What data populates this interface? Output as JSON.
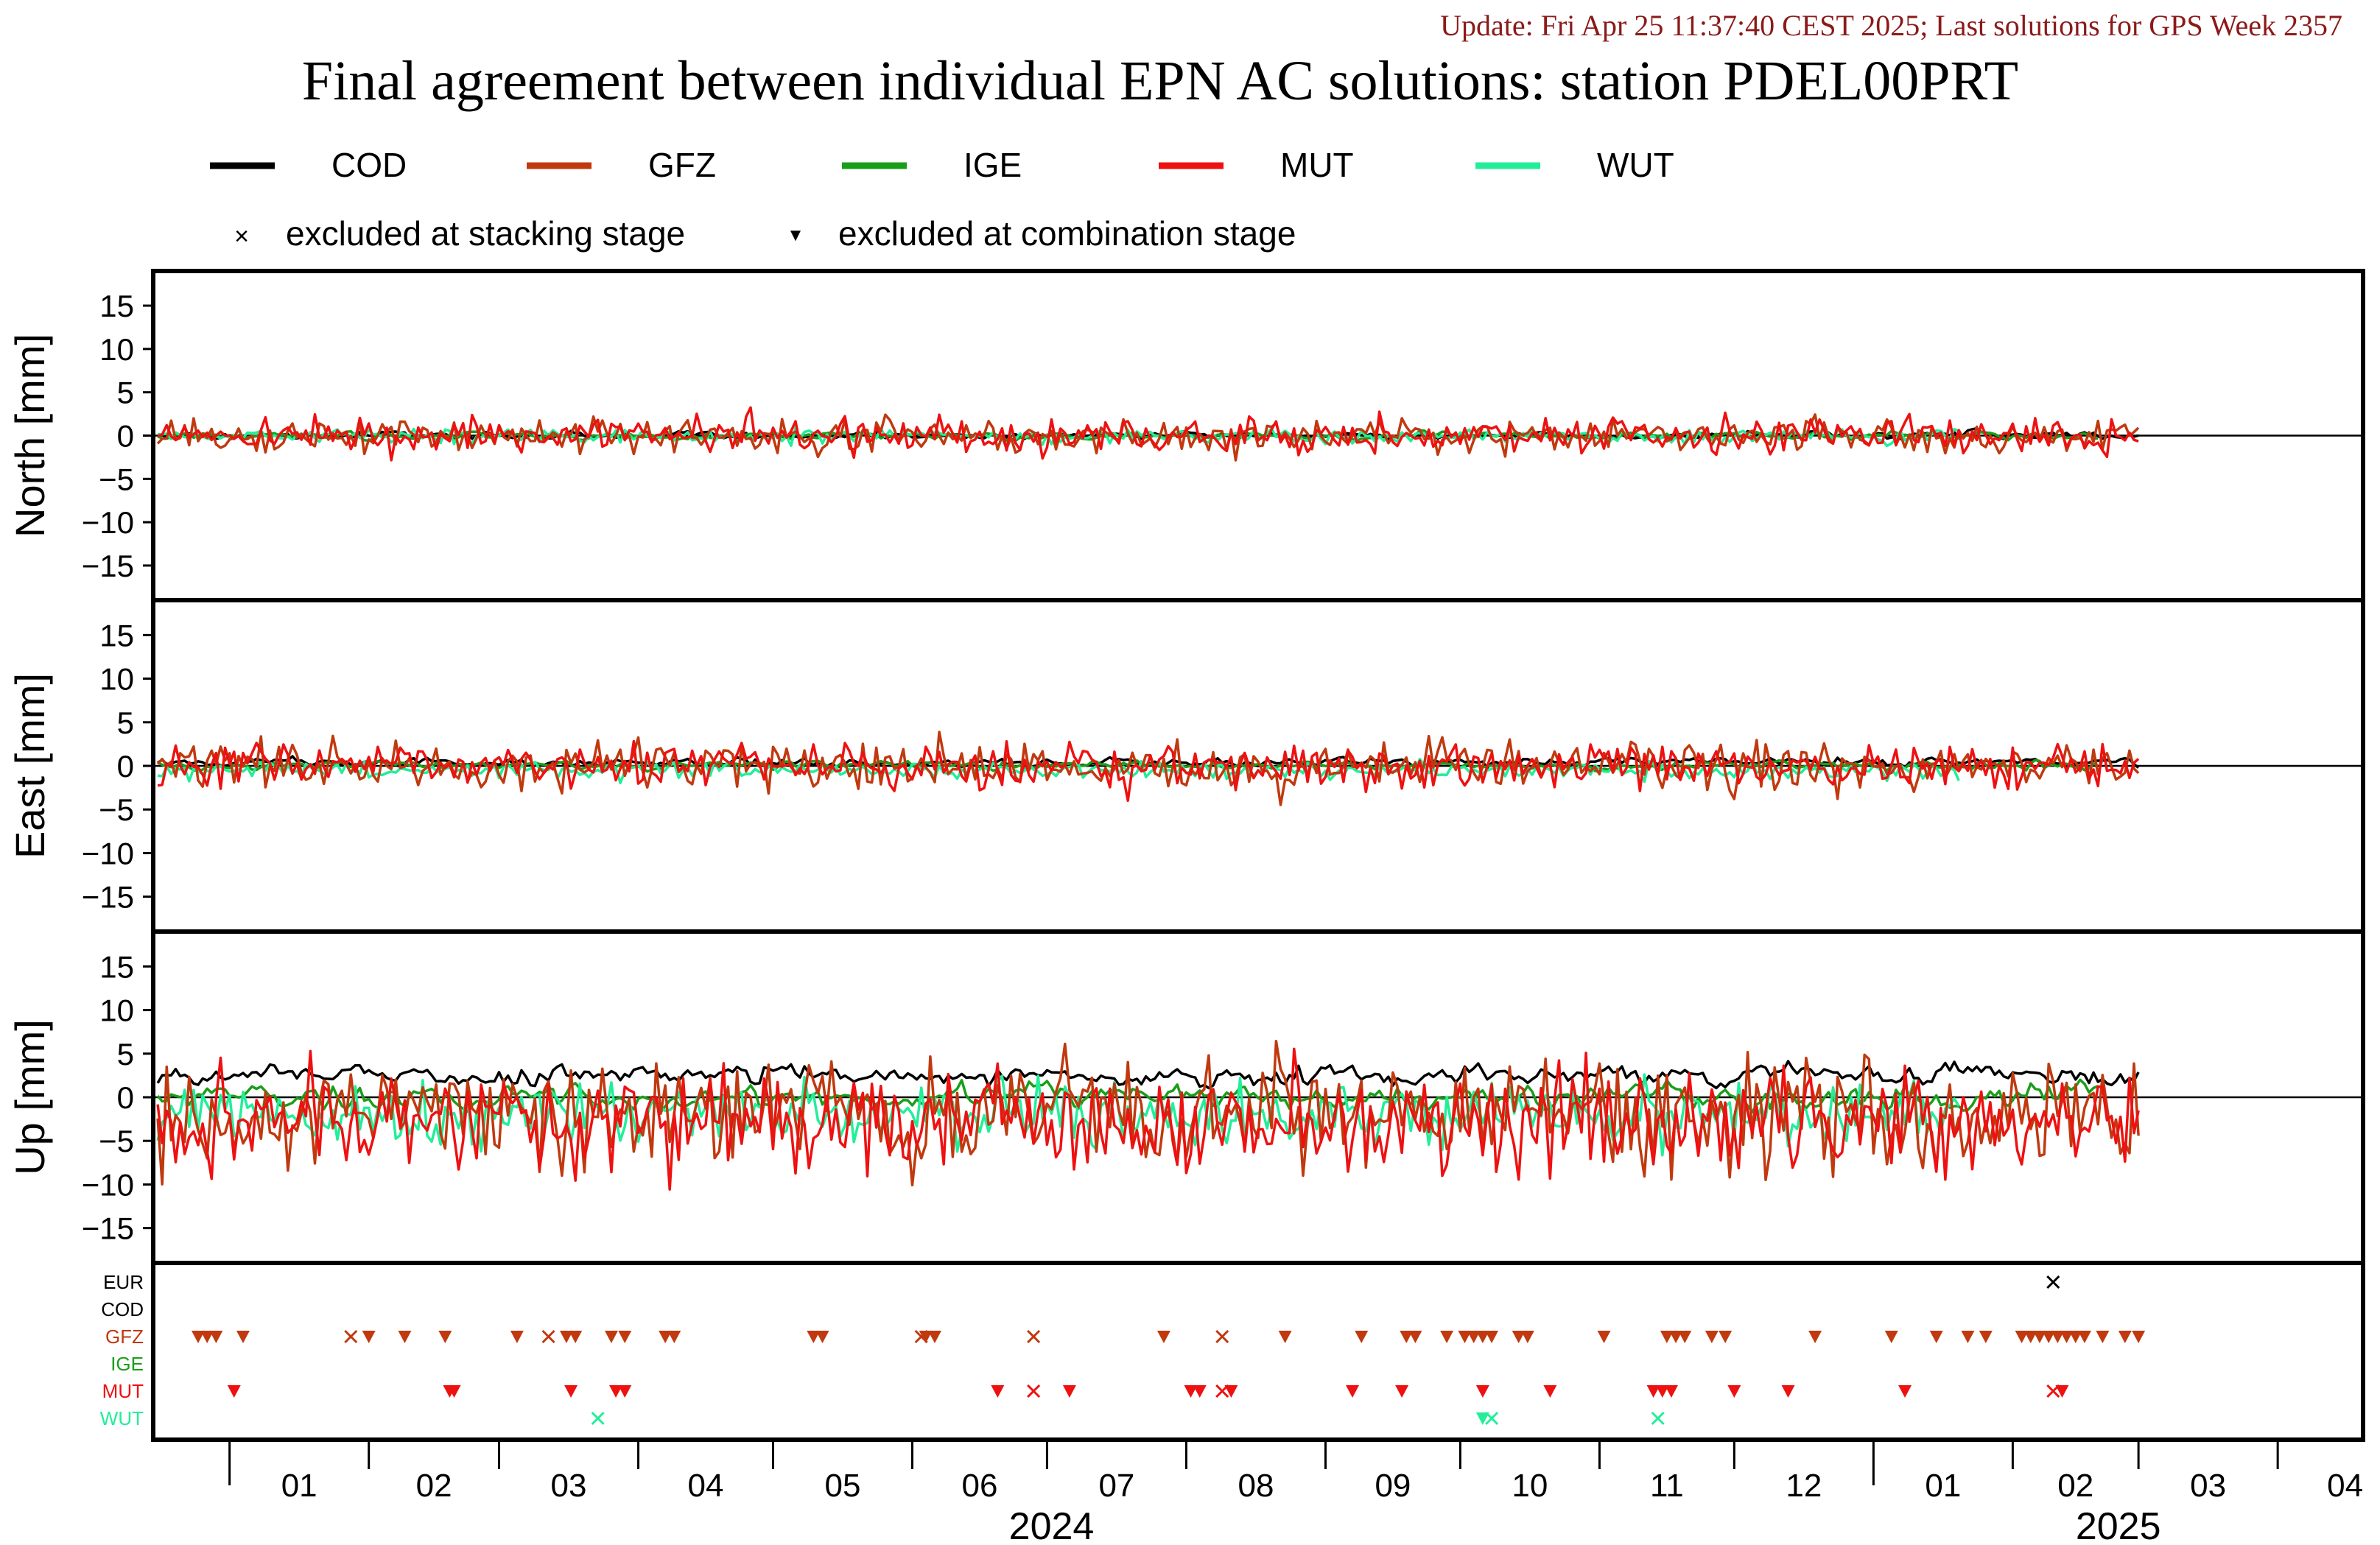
{
  "header": {
    "update_text": "Update: Fri Apr 25 11:37:40 CEST 2025; Last solutions for GPS Week 2357",
    "title": "Final agreement between individual EPN AC solutions: station PDEL00PRT"
  },
  "colors": {
    "COD": "#000000",
    "GFZ": "#c0390f",
    "IGE": "#1a9e1a",
    "MUT": "#ee1111",
    "WUT": "#22ee99",
    "update_text": "#8b1a1a",
    "EUR": "#000000"
  },
  "legend": {
    "series": [
      "COD",
      "GFZ",
      "IGE",
      "MUT",
      "WUT"
    ],
    "excluded_stacking": "excluded at stacking stage",
    "excluded_combination": "excluded at combination stage",
    "stacking_symbol": "×",
    "combination_symbol": "▼"
  },
  "chart_data": {
    "type": "line",
    "x_range": [
      "2023-12-15",
      "2025-04-20"
    ],
    "panels": [
      {
        "ylabel": "North [mm]",
        "ylim": [
          -19,
          19
        ],
        "yticks": [
          15,
          10,
          5,
          0,
          -5,
          -10,
          -15
        ],
        "profile": {
          "COD": [
            0,
            0.8
          ],
          "GFZ": [
            0,
            2.0
          ],
          "IGE": [
            0,
            0.8
          ],
          "MUT": [
            0,
            2.0
          ],
          "WUT": [
            0,
            0.8
          ]
        }
      },
      {
        "ylabel": "East [mm]",
        "ylim": [
          -19,
          19
        ],
        "yticks": [
          15,
          10,
          5,
          0,
          -5,
          -10,
          -15
        ],
        "profile": {
          "COD": [
            0.4,
            0.9
          ],
          "GFZ": [
            0,
            2.5
          ],
          "IGE": [
            0,
            0.9
          ],
          "MUT": [
            0,
            2.5
          ],
          "WUT": [
            -0.5,
            0.9
          ]
        }
      },
      {
        "ylabel": "Up [mm]",
        "ylim": [
          -19,
          19
        ],
        "yticks": [
          15,
          10,
          5,
          0,
          -5,
          -10,
          -15
        ],
        "profile": {
          "COD": [
            2.5,
            2.0
          ],
          "GFZ": [
            -2,
            6
          ],
          "IGE": [
            0,
            2.5
          ],
          "MUT": [
            -3,
            6
          ],
          "WUT": [
            -2,
            3.5
          ]
        }
      }
    ],
    "series_ranges": {
      "COD": [
        "2023-12-16",
        "2025-03-01"
      ],
      "GFZ": [
        "2023-12-16",
        "2025-03-01"
      ],
      "IGE": [
        "2023-12-16",
        "2025-02-20"
      ],
      "MUT": [
        "2023-12-16",
        "2025-03-01"
      ],
      "WUT": [
        "2023-12-16",
        "2025-01-20"
      ]
    },
    "exclusion_rows": [
      "EUR",
      "COD",
      "GFZ",
      "IGE",
      "MUT",
      "WUT"
    ],
    "exclusions": {
      "EUR": {
        "stacking": [
          "2025-02-10"
        ],
        "combination": []
      },
      "COD": {
        "stacking": [],
        "combination": []
      },
      "GFZ": {
        "stacking": [
          "2024-01-28",
          "2024-06-03",
          "2024-06-28",
          "2024-08-09",
          "2024-03-12"
        ],
        "combination": [
          "2023-12-25",
          "2023-12-27",
          "2023-12-29",
          "2024-01-04",
          "2024-02-01",
          "2024-02-09",
          "2024-02-18",
          "2024-03-05",
          "2024-03-16",
          "2024-03-18",
          "2024-03-26",
          "2024-03-29",
          "2024-04-07",
          "2024-04-09",
          "2024-05-10",
          "2024-05-12",
          "2024-06-04",
          "2024-06-06",
          "2024-07-27",
          "2024-08-23",
          "2024-09-09",
          "2024-09-19",
          "2024-09-21",
          "2024-09-28",
          "2024-10-02",
          "2024-10-04",
          "2024-10-06",
          "2024-10-08",
          "2024-10-14",
          "2024-10-16",
          "2024-11-02",
          "2024-11-16",
          "2024-11-18",
          "2024-11-20",
          "2024-11-26",
          "2024-11-29",
          "2024-12-19",
          "2025-01-05",
          "2025-01-15",
          "2025-01-22",
          "2025-01-26",
          "2025-02-03",
          "2025-02-05",
          "2025-02-07",
          "2025-02-09",
          "2025-02-11",
          "2025-02-13",
          "2025-02-15",
          "2025-02-17",
          "2025-02-21",
          "2025-02-26",
          "2025-03-01"
        ]
      },
      "IGE": {
        "stacking": [],
        "combination": []
      },
      "MUT": {
        "stacking": [
          "2024-06-28",
          "2024-08-09",
          "2025-02-10"
        ],
        "combination": [
          "2024-01-02",
          "2024-02-19",
          "2024-02-20",
          "2024-03-17",
          "2024-03-27",
          "2024-03-29",
          "2024-06-20",
          "2024-07-06",
          "2024-08-02",
          "2024-08-04",
          "2024-08-11",
          "2024-09-07",
          "2024-09-18",
          "2024-10-06",
          "2024-10-21",
          "2024-11-13",
          "2024-11-15",
          "2024-11-17",
          "2024-12-01",
          "2024-12-13",
          "2025-01-08",
          "2025-02-12"
        ]
      },
      "WUT": {
        "stacking": [
          "2024-03-23",
          "2024-10-08",
          "2024-11-14"
        ],
        "combination": [
          "2024-10-06"
        ]
      }
    },
    "x_month_labels": [
      "01",
      "02",
      "03",
      "04",
      "05",
      "06",
      "07",
      "08",
      "09",
      "10",
      "11",
      "12",
      "01",
      "02",
      "03",
      "04"
    ],
    "x_year_labels": [
      "2024",
      "2025"
    ]
  }
}
